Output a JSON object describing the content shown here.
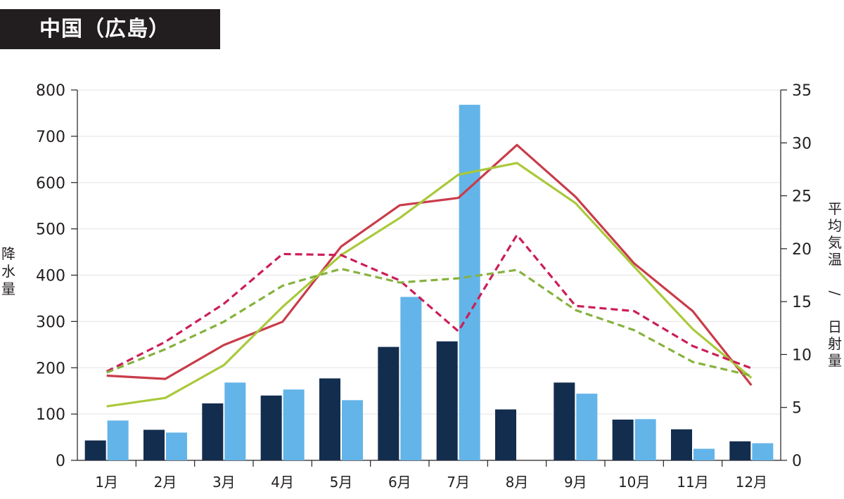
{
  "title": "中国（広島）",
  "chart_data": {
    "type": "bar+line",
    "categories": [
      "1月",
      "2月",
      "3月",
      "4月",
      "5月",
      "6月",
      "7月",
      "8月",
      "9月",
      "10月",
      "11月",
      "12月"
    ],
    "left_axis": {
      "label": "降水量",
      "range": [
        0,
        800
      ],
      "ticks": [
        0,
        100,
        200,
        300,
        400,
        500,
        600,
        700,
        800
      ]
    },
    "right_axis": {
      "label": "平均気温 / 日射量",
      "range": [
        0,
        35
      ],
      "ticks": [
        0,
        5,
        10,
        15,
        20,
        25,
        30,
        35
      ]
    },
    "grid": true,
    "bars": [
      {
        "axis": "left",
        "color": "#132d4e",
        "values": [
          43,
          66,
          123,
          140,
          177,
          245,
          257,
          110,
          168,
          88,
          67,
          41
        ]
      },
      {
        "axis": "left",
        "color": "#63b4e9",
        "values": [
          86,
          60,
          168,
          153,
          130,
          353,
          768,
          0,
          144,
          89,
          25,
          37
        ]
      }
    ],
    "lines": [
      {
        "axis": "right",
        "color": "#c93c4a",
        "style": "solid",
        "values": [
          8.0,
          7.7,
          10.9,
          13.1,
          20.2,
          24.1,
          24.8,
          29.8,
          24.9,
          18.6,
          14.1,
          7.1
        ]
      },
      {
        "axis": "right",
        "color": "#a9c93a",
        "style": "solid",
        "values": [
          5.1,
          5.9,
          9.0,
          14.5,
          19.4,
          22.9,
          27.0,
          28.1,
          24.3,
          18.3,
          12.4,
          7.8
        ]
      },
      {
        "axis": "right",
        "color": "#cc1e58",
        "style": "dashed",
        "values": [
          8.4,
          11.2,
          14.8,
          19.5,
          19.4,
          17.0,
          12.2,
          21.3,
          14.6,
          14.1,
          10.8,
          8.7
        ]
      },
      {
        "axis": "right",
        "color": "#86b23e",
        "style": "dashed",
        "values": [
          8.3,
          10.5,
          13.1,
          16.5,
          18.1,
          16.8,
          17.2,
          18.0,
          14.2,
          12.3,
          9.3,
          8.0
        ]
      }
    ]
  }
}
